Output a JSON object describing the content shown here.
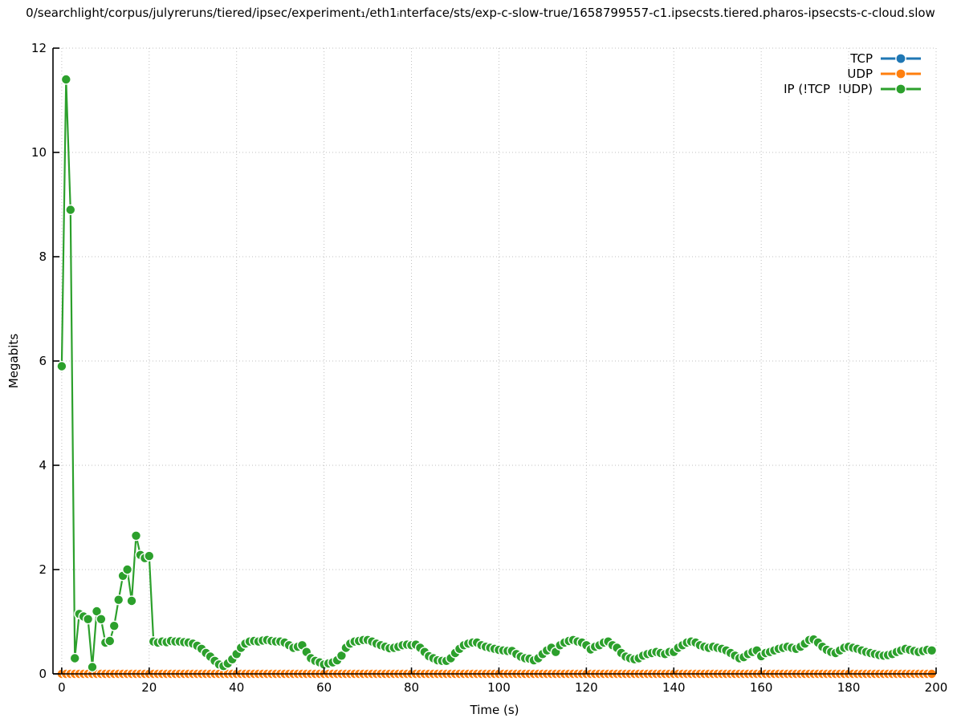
{
  "title": "0/searchlight/corpus/julyreruns/tiered/ipsec/experiment₁/eth1ᵢnterface/sts/exp-c-slow-true/1658799557-c1.ipsecsts.tiered.pharos-ipsecsts-c-cloud.slow",
  "axes": {
    "xlabel": "Time (s)",
    "ylabel": "Megabits",
    "xticks": [
      0,
      20,
      40,
      60,
      80,
      100,
      120,
      140,
      160,
      180,
      200
    ],
    "yticks": [
      0,
      2,
      4,
      6,
      8,
      10,
      12
    ],
    "xlim": [
      -2,
      200
    ],
    "ylim": [
      0,
      12
    ],
    "grid": "dotted"
  },
  "legend": {
    "position": "top-right",
    "items": [
      {
        "label": "TCP",
        "color": "#1f77b4"
      },
      {
        "label": "UDP",
        "color": "#ff7f0e"
      },
      {
        "label": "IP (!TCP  !UDP)",
        "color": "#2ca02c"
      }
    ]
  },
  "chart_data": {
    "type": "line",
    "title": "0/searchlight/corpus/julyreruns/tiered/ipsec/experiment₁/eth1ᵢnterface/sts/exp-c-slow-true/1658799557-c1.ipsecsts.tiered.pharos-ipsecsts-c-cloud.slow",
    "xlabel": "Time (s)",
    "ylabel": "Megabits",
    "xlim": [
      -2,
      200
    ],
    "ylim": [
      0,
      12
    ],
    "grid": true,
    "legend_position": "top-right",
    "marker": "filled-circle-with-white-halo",
    "x_interval_s": 1,
    "series": [
      {
        "name": "TCP",
        "color": "#1f77b4",
        "x_start": 0,
        "x_end": 199,
        "y_constant": 0
      },
      {
        "name": "UDP",
        "color": "#ff7f0e",
        "x_start": 0,
        "x_end": 199,
        "y_constant": 0
      },
      {
        "name": "IP (!TCP  !UDP)",
        "color": "#2ca02c",
        "x_start": 0,
        "values": [
          5.9,
          11.4,
          8.9,
          0.3,
          1.15,
          1.1,
          1.05,
          0.13,
          1.2,
          1.05,
          0.6,
          0.63,
          0.92,
          1.42,
          1.88,
          2.0,
          1.4,
          2.65,
          2.28,
          2.22,
          2.26,
          0.62,
          0.6,
          0.62,
          0.61,
          0.63,
          0.62,
          0.62,
          0.61,
          0.6,
          0.58,
          0.54,
          0.48,
          0.4,
          0.33,
          0.25,
          0.18,
          0.15,
          0.2,
          0.28,
          0.38,
          0.5,
          0.58,
          0.62,
          0.63,
          0.62,
          0.64,
          0.65,
          0.63,
          0.62,
          0.62,
          0.6,
          0.55,
          0.5,
          0.52,
          0.55,
          0.42,
          0.3,
          0.25,
          0.22,
          0.18,
          0.2,
          0.22,
          0.26,
          0.35,
          0.5,
          0.58,
          0.62,
          0.63,
          0.65,
          0.65,
          0.62,
          0.58,
          0.55,
          0.52,
          0.49,
          0.5,
          0.52,
          0.55,
          0.56,
          0.55,
          0.56,
          0.5,
          0.42,
          0.34,
          0.3,
          0.26,
          0.25,
          0.25,
          0.3,
          0.4,
          0.48,
          0.55,
          0.58,
          0.6,
          0.6,
          0.55,
          0.52,
          0.5,
          0.48,
          0.46,
          0.45,
          0.44,
          0.44,
          0.38,
          0.33,
          0.3,
          0.29,
          0.26,
          0.3,
          0.38,
          0.45,
          0.5,
          0.42,
          0.55,
          0.6,
          0.63,
          0.65,
          0.62,
          0.6,
          0.55,
          0.47,
          0.52,
          0.55,
          0.6,
          0.62,
          0.55,
          0.5,
          0.4,
          0.33,
          0.3,
          0.28,
          0.3,
          0.35,
          0.38,
          0.4,
          0.42,
          0.4,
          0.38,
          0.42,
          0.42,
          0.5,
          0.55,
          0.6,
          0.62,
          0.6,
          0.55,
          0.52,
          0.5,
          0.52,
          0.5,
          0.48,
          0.45,
          0.4,
          0.35,
          0.3,
          0.32,
          0.38,
          0.42,
          0.45,
          0.34,
          0.4,
          0.42,
          0.45,
          0.48,
          0.5,
          0.52,
          0.5,
          0.48,
          0.52,
          0.58,
          0.65,
          0.66,
          0.6,
          0.52,
          0.46,
          0.42,
          0.4,
          0.45,
          0.5,
          0.52,
          0.5,
          0.48,
          0.45,
          0.42,
          0.4,
          0.38,
          0.36,
          0.35,
          0.36,
          0.38,
          0.42,
          0.45,
          0.48,
          0.46,
          0.44,
          0.42,
          0.44,
          0.46,
          0.45
        ]
      }
    ]
  }
}
